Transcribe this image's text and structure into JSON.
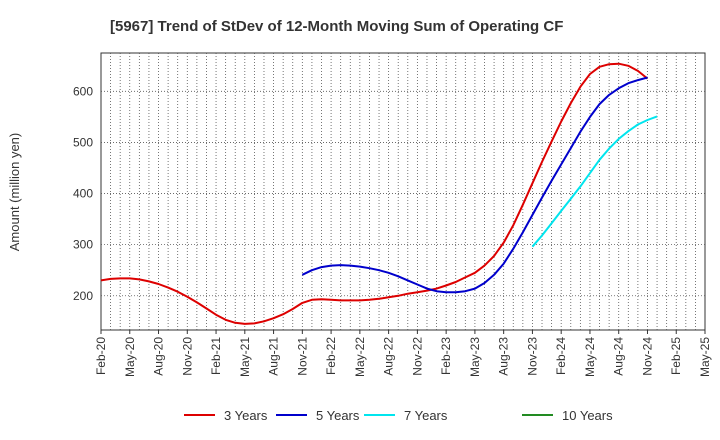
{
  "chart_data": {
    "type": "line",
    "title": "[5967]  Trend of StDev of 12-Month Moving Sum of Operating CF",
    "ylabel": "Amount (million yen)",
    "xlabel": "",
    "ylim": [
      133,
      675
    ],
    "yticks": [
      200,
      300,
      400,
      500,
      600
    ],
    "grid": true,
    "legend_position": "bottom",
    "x_ticks": [
      "Feb-20",
      "May-20",
      "Aug-20",
      "Nov-20",
      "Feb-21",
      "May-21",
      "Aug-21",
      "Nov-21",
      "Feb-22",
      "May-22",
      "Aug-22",
      "Nov-22",
      "Feb-23",
      "May-23",
      "Aug-23",
      "Nov-23",
      "Feb-24",
      "May-24",
      "Aug-24",
      "Nov-24",
      "Feb-25",
      "May-25"
    ],
    "x_start": "Feb-20",
    "x_end": "May-25",
    "series": [
      {
        "name": "3 Years",
        "color": "#dd0000",
        "points": [
          [
            "Feb-20",
            230
          ],
          [
            "Mar-20",
            233
          ],
          [
            "Apr-20",
            234
          ],
          [
            "May-20",
            234
          ],
          [
            "Jun-20",
            232
          ],
          [
            "Jul-20",
            228
          ],
          [
            "Aug-20",
            223
          ],
          [
            "Sep-20",
            216
          ],
          [
            "Oct-20",
            208
          ],
          [
            "Nov-20",
            198
          ],
          [
            "Dec-20",
            187
          ],
          [
            "Jan-21",
            175
          ],
          [
            "Feb-21",
            163
          ],
          [
            "Mar-21",
            153
          ],
          [
            "Apr-21",
            147
          ],
          [
            "May-21",
            145
          ],
          [
            "Jun-21",
            146
          ],
          [
            "Jul-21",
            150
          ],
          [
            "Aug-21",
            156
          ],
          [
            "Sep-21",
            164
          ],
          [
            "Oct-21",
            174
          ],
          [
            "Nov-21",
            186
          ],
          [
            "Dec-21",
            192
          ],
          [
            "Jan-22",
            193
          ],
          [
            "Feb-22",
            192
          ],
          [
            "Mar-22",
            191
          ],
          [
            "Apr-22",
            191
          ],
          [
            "May-22",
            191
          ],
          [
            "Jun-22",
            192
          ],
          [
            "Jul-22",
            194
          ],
          [
            "Aug-22",
            197
          ],
          [
            "Sep-22",
            200
          ],
          [
            "Oct-22",
            204
          ],
          [
            "Nov-22",
            207
          ],
          [
            "Dec-22",
            210
          ],
          [
            "Jan-23",
            214
          ],
          [
            "Feb-23",
            220
          ],
          [
            "Mar-23",
            227
          ],
          [
            "Apr-23",
            236
          ],
          [
            "May-23",
            245
          ],
          [
            "Jun-23",
            259
          ],
          [
            "Jul-23",
            278
          ],
          [
            "Aug-23",
            304
          ],
          [
            "Sep-23",
            338
          ],
          [
            "Oct-23",
            378
          ],
          [
            "Nov-23",
            420
          ],
          [
            "Dec-23",
            462
          ],
          [
            "Jan-24",
            502
          ],
          [
            "Feb-24",
            541
          ],
          [
            "Mar-24",
            577
          ],
          [
            "Apr-24",
            609
          ],
          [
            "May-24",
            634
          ],
          [
            "Jun-24",
            648
          ],
          [
            "Jul-24",
            653
          ],
          [
            "Aug-24",
            654
          ],
          [
            "Sep-24",
            650
          ],
          [
            "Oct-24",
            640
          ],
          [
            "Nov-24",
            625
          ]
        ]
      },
      {
        "name": "5 Years",
        "color": "#0000cc",
        "points": [
          [
            "Nov-21",
            241
          ],
          [
            "Dec-21",
            250
          ],
          [
            "Jan-22",
            256
          ],
          [
            "Feb-22",
            259
          ],
          [
            "Mar-22",
            260
          ],
          [
            "Apr-22",
            259
          ],
          [
            "May-22",
            257
          ],
          [
            "Jun-22",
            254
          ],
          [
            "Jul-22",
            250
          ],
          [
            "Aug-22",
            245
          ],
          [
            "Sep-22",
            238
          ],
          [
            "Oct-22",
            230
          ],
          [
            "Nov-22",
            222
          ],
          [
            "Dec-22",
            214
          ],
          [
            "Jan-23",
            209
          ],
          [
            "Feb-23",
            207
          ],
          [
            "Mar-23",
            207
          ],
          [
            "Apr-23",
            209
          ],
          [
            "May-23",
            214
          ],
          [
            "Jun-23",
            225
          ],
          [
            "Jul-23",
            241
          ],
          [
            "Aug-23",
            263
          ],
          [
            "Sep-23",
            292
          ],
          [
            "Oct-23",
            324
          ],
          [
            "Nov-23",
            358
          ],
          [
            "Dec-23",
            392
          ],
          [
            "Jan-24",
            425
          ],
          [
            "Feb-24",
            457
          ],
          [
            "Mar-24",
            489
          ],
          [
            "Apr-24",
            521
          ],
          [
            "May-24",
            550
          ],
          [
            "Jun-24",
            575
          ],
          [
            "Jul-24",
            593
          ],
          [
            "Aug-24",
            606
          ],
          [
            "Sep-24",
            616
          ],
          [
            "Oct-24",
            622
          ],
          [
            "Nov-24",
            627
          ]
        ]
      },
      {
        "name": "7 Years",
        "color": "#00e5ee",
        "points": [
          [
            "Nov-23",
            296
          ],
          [
            "Dec-23",
            318
          ],
          [
            "Jan-24",
            342
          ],
          [
            "Feb-24",
            366
          ],
          [
            "Mar-24",
            390
          ],
          [
            "Apr-24",
            414
          ],
          [
            "May-24",
            440
          ],
          [
            "Jun-24",
            466
          ],
          [
            "Jul-24",
            488
          ],
          [
            "Aug-24",
            507
          ],
          [
            "Sep-24",
            522
          ],
          [
            "Oct-24",
            535
          ],
          [
            "Nov-24",
            544
          ],
          [
            "Dec-24",
            551
          ]
        ]
      },
      {
        "name": "10 Years",
        "color": "#228b22",
        "points": []
      }
    ]
  }
}
